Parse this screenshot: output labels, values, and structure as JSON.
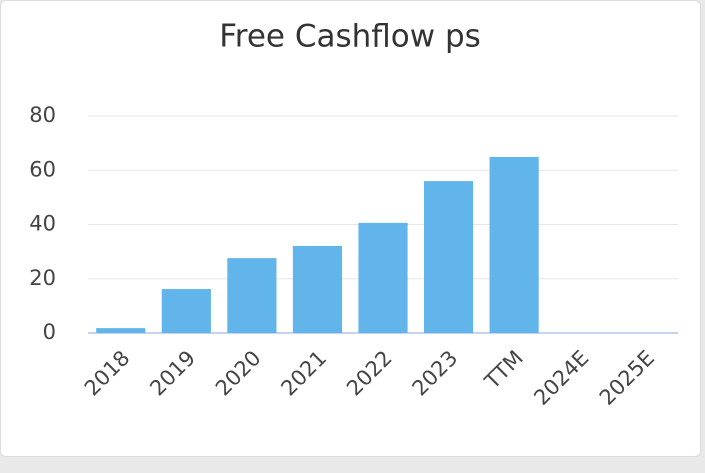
{
  "chart_data": {
    "type": "bar",
    "title": "Free Cashflow ps",
    "categories": [
      "2018",
      "2019",
      "2020",
      "2021",
      "2022",
      "2023",
      "TTM",
      "2024E",
      "2025E"
    ],
    "values": [
      1.8,
      16.2,
      27.6,
      32.1,
      40.6,
      56,
      64.9,
      null,
      null
    ],
    "color": "#62b5ea",
    "ylim": [
      0,
      80
    ],
    "yticks": [
      0,
      20,
      40,
      60,
      80
    ],
    "grid": true
  }
}
